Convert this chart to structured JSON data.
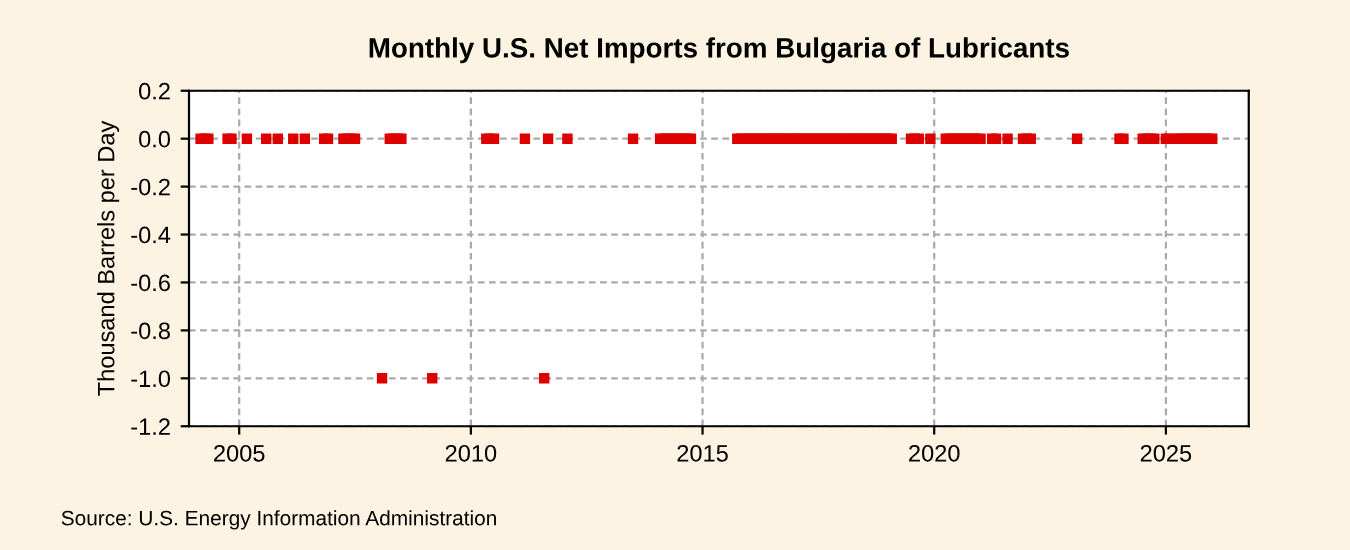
{
  "chart_data": {
    "type": "scatter",
    "title": "Monthly U.S. Net Imports from Bulgaria of Lubricants",
    "ylabel": "Thousand Barrels per Day",
    "annotations": [
      "Source: U.S. Energy Information Administration"
    ],
    "x": [
      "2004-03",
      "2004-04",
      "2004-05",
      "2004-10",
      "2004-11",
      "2005-03",
      "2005-08",
      "2005-11",
      "2006-03",
      "2006-06",
      "2006-11",
      "2006-12",
      "2007-04",
      "2007-05",
      "2007-06",
      "2007-07",
      "2008-02",
      "2008-04",
      "2008-05",
      "2008-06",
      "2008-07",
      "2009-03",
      "2010-05",
      "2010-06",
      "2010-07",
      "2011-03",
      "2011-08",
      "2011-09",
      "2012-02",
      "2013-07",
      "2014-02",
      "2014-03",
      "2014-04",
      "2014-05",
      "2014-06",
      "2014-07",
      "2014-08",
      "2014-09",
      "2014-10",
      "2015-10",
      "2015-11",
      "2015-12",
      "2016-01",
      "2016-02",
      "2016-03",
      "2016-04",
      "2016-05",
      "2016-06",
      "2016-07",
      "2016-08",
      "2016-09",
      "2016-10",
      "2016-11",
      "2016-12",
      "2017-01",
      "2017-02",
      "2017-03",
      "2017-04",
      "2017-05",
      "2017-06",
      "2017-07",
      "2017-08",
      "2017-09",
      "2017-10",
      "2017-11",
      "2017-12",
      "2018-01",
      "2018-02",
      "2018-03",
      "2018-04",
      "2018-05",
      "2018-06",
      "2018-07",
      "2018-08",
      "2018-09",
      "2018-10",
      "2018-11",
      "2018-12",
      "2019-01",
      "2019-02",
      "2019-07",
      "2019-08",
      "2019-09",
      "2019-12",
      "2020-04",
      "2020-05",
      "2020-06",
      "2020-07",
      "2020-08",
      "2020-09",
      "2020-10",
      "2020-11",
      "2020-12",
      "2021-01",
      "2021-04",
      "2021-05",
      "2021-08",
      "2021-12",
      "2022-01",
      "2022-02",
      "2023-02",
      "2024-01",
      "2024-02",
      "2024-07",
      "2024-08",
      "2024-09",
      "2024-10",
      "2025-01",
      "2025-02",
      "2025-04",
      "2025-05",
      "2025-06",
      "2025-07",
      "2025-08",
      "2025-09",
      "2025-10",
      "2025-11",
      "2025-12",
      "2026-01"
    ],
    "series": [
      {
        "color": "#dd0000",
        "values": [
          0,
          0,
          0,
          0,
          0,
          0,
          0,
          0,
          0,
          0,
          0,
          0,
          0,
          0,
          0,
          0,
          -1,
          0,
          0,
          0,
          0,
          -1,
          0,
          0,
          0,
          0,
          -1,
          0,
          0,
          0,
          0,
          0,
          0,
          0,
          0,
          0,
          0,
          0,
          0,
          0,
          0,
          0,
          0,
          0,
          0,
          0,
          0,
          0,
          0,
          0,
          0,
          0,
          0,
          0,
          0,
          0,
          0,
          0,
          0,
          0,
          0,
          0,
          0,
          0,
          0,
          0,
          0,
          0,
          0,
          0,
          0,
          0,
          0,
          0,
          0,
          0,
          0,
          0,
          0,
          0,
          0,
          0,
          0,
          0,
          0,
          0,
          0,
          0,
          0,
          0,
          0,
          0,
          0,
          0,
          0,
          0,
          0,
          0,
          0,
          0,
          0,
          0,
          0,
          0,
          0,
          0,
          0,
          0,
          0,
          0,
          0,
          0,
          0,
          0,
          0,
          0,
          0,
          0,
          0
        ]
      }
    ],
    "marker": "square",
    "grid": true,
    "legend": false,
    "xlim": [
      "2003-12-01",
      "2026-10-15"
    ],
    "xticks": [
      {
        "value": "2005-01-01",
        "label": "2005"
      },
      {
        "value": "2010-01-01",
        "label": "2010"
      },
      {
        "value": "2015-01-01",
        "label": "2015"
      },
      {
        "value": "2020-01-01",
        "label": "2020"
      },
      {
        "value": "2025-01-01",
        "label": "2025"
      }
    ],
    "ylim": [
      -1.2,
      0.2
    ],
    "yticks": [
      {
        "value": -1.2,
        "label": "-1.2"
      },
      {
        "value": -1.0,
        "label": "-1.0"
      },
      {
        "value": -0.8,
        "label": "-0.8"
      },
      {
        "value": -0.6,
        "label": "-0.6"
      },
      {
        "value": -0.4,
        "label": "-0.4"
      },
      {
        "value": -0.2,
        "label": "-0.2"
      },
      {
        "value": 0,
        "label": "0.0"
      },
      {
        "value": 0.2,
        "label": "0.2"
      }
    ]
  }
}
